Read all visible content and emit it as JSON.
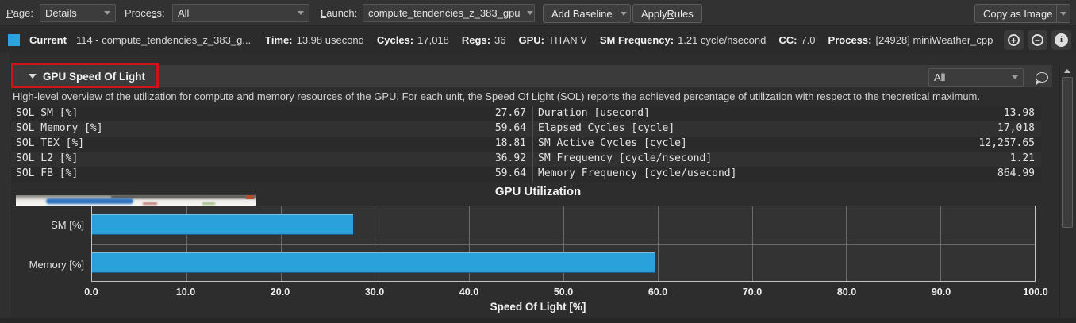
{
  "toolbar": {
    "page_label": {
      "key": "P",
      "post": "age:"
    },
    "page_value": "Details",
    "process_label": {
      "pre": "Proce",
      "key": "s",
      "post": "s:"
    },
    "process_value": "All",
    "launch_label": {
      "key": "L",
      "post": "aunch:"
    },
    "launch_value": "compute_tendencies_z_383_gpu",
    "add_baseline_label": "Add Baseline",
    "apply_rules_label": {
      "pre": "Apply ",
      "key": "R",
      "post": "ules"
    },
    "copy_as_image_label": "Copy as Image"
  },
  "current_row": {
    "swatch_color": "#2BA3DC",
    "label": "Current",
    "kernel": "114 - compute_tendencies_z_383_g...",
    "metrics": [
      {
        "label": "Time:",
        "value": "13.98 usecond"
      },
      {
        "label": "Cycles:",
        "value": "17,018"
      },
      {
        "label": "Regs:",
        "value": "36"
      },
      {
        "label": "GPU:",
        "value": "TITAN V"
      },
      {
        "label": "SM Frequency:",
        "value": "1.21 cycle/nsecond"
      },
      {
        "label": "CC:",
        "value": "7.0"
      },
      {
        "label": "Process:",
        "value": "[24928] miniWeather_cpp"
      }
    ],
    "icons": {
      "plus": "+",
      "minus": "−",
      "info": "i"
    }
  },
  "section": {
    "title": "GPU Speed Of Light",
    "filter_value": "All",
    "highlight_color": "#CE1416",
    "description": "High-level overview of the utilization for compute and memory resources of the GPU. For each unit, the Speed Of Light (SOL) reports the achieved percentage of utilization with respect to the theoretical maximum."
  },
  "metrics_table": {
    "left": [
      {
        "name": "SOL SM [%]",
        "value": "27.67"
      },
      {
        "name": "SOL Memory [%]",
        "value": "59.64"
      },
      {
        "name": "SOL TEX [%]",
        "value": "18.81"
      },
      {
        "name": "SOL L2 [%]",
        "value": "36.92"
      },
      {
        "name": "SOL FB [%]",
        "value": "59.64"
      }
    ],
    "right": [
      {
        "name": "Duration [usecond]",
        "value": "13.98"
      },
      {
        "name": "Elapsed Cycles [cycle]",
        "value": "17,018"
      },
      {
        "name": "SM Active Cycles [cycle]",
        "value": "12,257.65"
      },
      {
        "name": "SM Frequency [cycle/nsecond]",
        "value": "1.21"
      },
      {
        "name": "Memory Frequency [cycle/usecond]",
        "value": "864.99"
      }
    ]
  },
  "chart_data": {
    "type": "bar",
    "orientation": "horizontal",
    "title": "GPU Utilization",
    "xlabel": "Speed Of Light [%]",
    "categories": [
      "SM [%]",
      "Memory [%]"
    ],
    "values": [
      27.67,
      59.64
    ],
    "xlim": [
      0,
      100
    ],
    "xtick_labels": [
      "0.0",
      "10.0",
      "20.0",
      "30.0",
      "40.0",
      "50.0",
      "60.0",
      "70.0",
      "80.0",
      "90.0",
      "100.0"
    ],
    "bar_color": "#2AA1DB",
    "grid": true,
    "legend": "none"
  }
}
